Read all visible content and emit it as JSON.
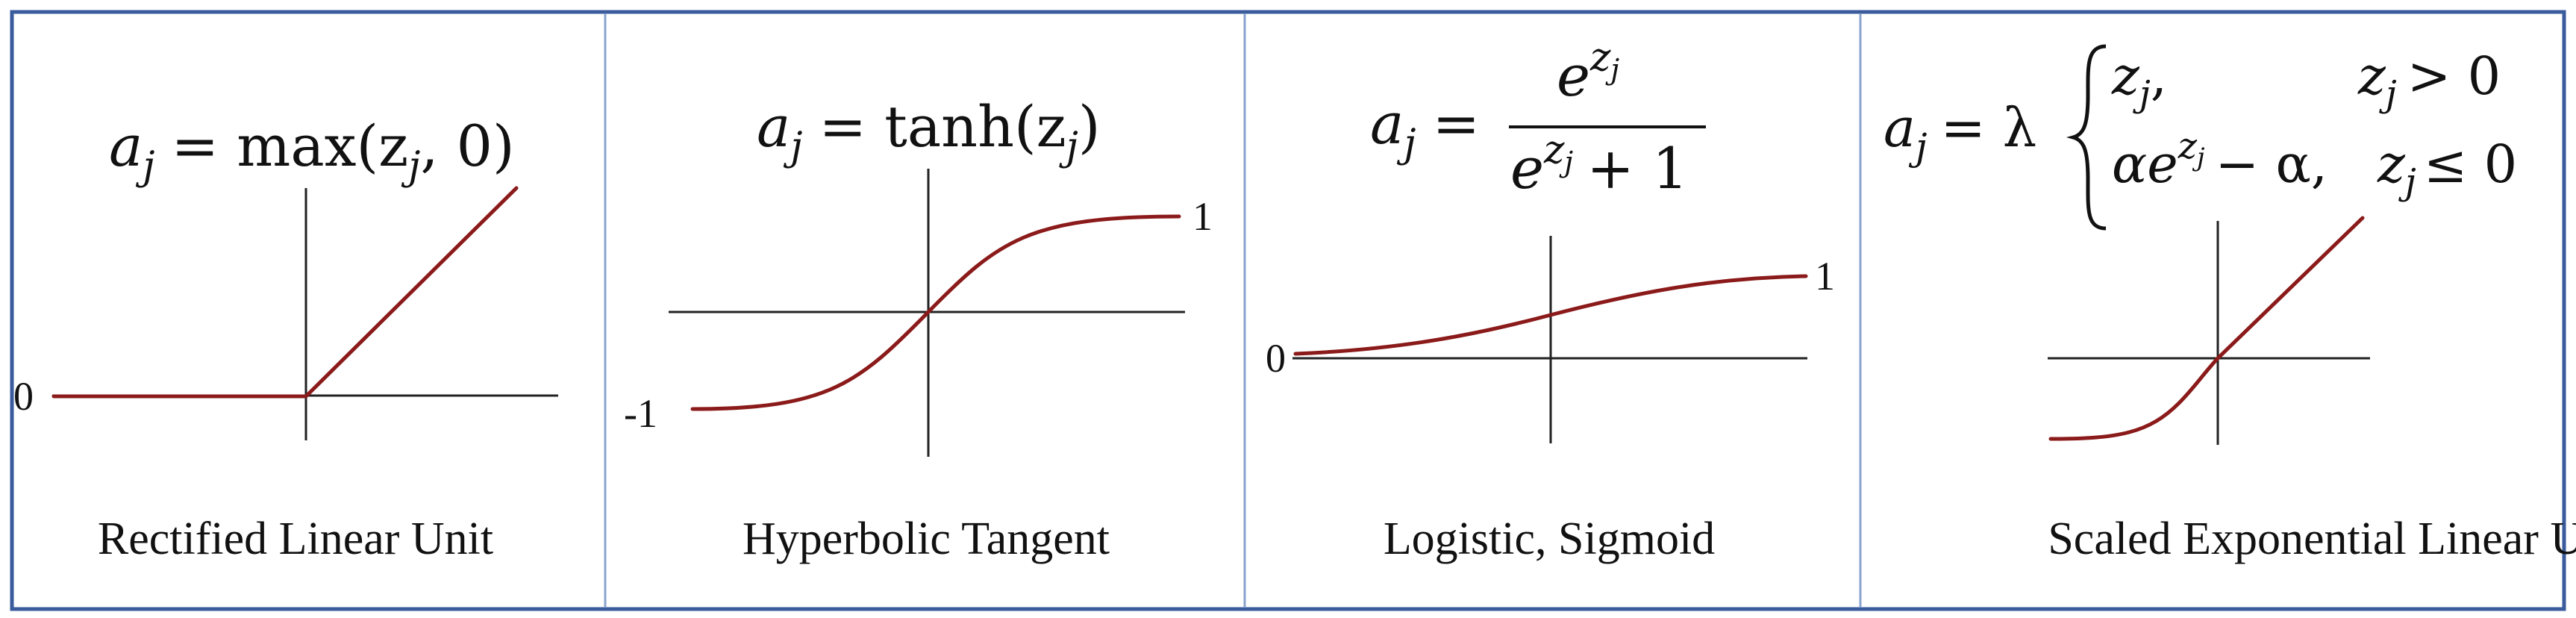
{
  "colors": {
    "frame": "#3a5b9c",
    "divider": "#8aa4cf",
    "curve": "#8b1a1a",
    "axis": "#222222",
    "text": "#111111"
  },
  "panels": [
    {
      "caption": "Rectified Linear Unit",
      "formula": {
        "lhs": "a",
        "sub": "j",
        "rhs": "= max(z",
        "rhs_sub": "j",
        "rhs_end": ", 0)"
      },
      "ticks": {
        "left": "0",
        "right": ""
      }
    },
    {
      "caption": "Hyperbolic Tangent",
      "formula": {
        "lhs": "a",
        "sub": "j",
        "rhs": "= tanh(z",
        "rhs_sub": "j",
        "rhs_end": ")"
      },
      "ticks": {
        "left": "-1",
        "right": "1"
      }
    },
    {
      "caption": "Logistic, Sigmoid",
      "formula": {
        "lhs": "a",
        "sub": "j",
        "eq": "=",
        "num": "e",
        "num_sup": "z",
        "num_sup_sub": "j",
        "den": "e",
        "den_sup": "z",
        "den_sup_sub": "j",
        "den_end": "+ 1"
      },
      "ticks": {
        "left": "0",
        "right": "1"
      }
    },
    {
      "caption": "Scaled Exponential Linear Unit",
      "formula": {
        "lhs": "a",
        "sub": "j",
        "eq": "= λ",
        "case1_expr": "z",
        "case1_sub": "j",
        "case1_comma": ",",
        "case1_cond": "z",
        "case1_cond_sub": "j",
        "case1_cond_op": "> 0",
        "case2_expr": "αe",
        "case2_sup": "z",
        "case2_sup_sub": "j",
        "case2_rest": "− α,",
        "case2_cond": "z",
        "case2_cond_sub": "j",
        "case2_cond_op": "≤ 0"
      },
      "ticks": {
        "left": "",
        "right": ""
      }
    }
  ]
}
